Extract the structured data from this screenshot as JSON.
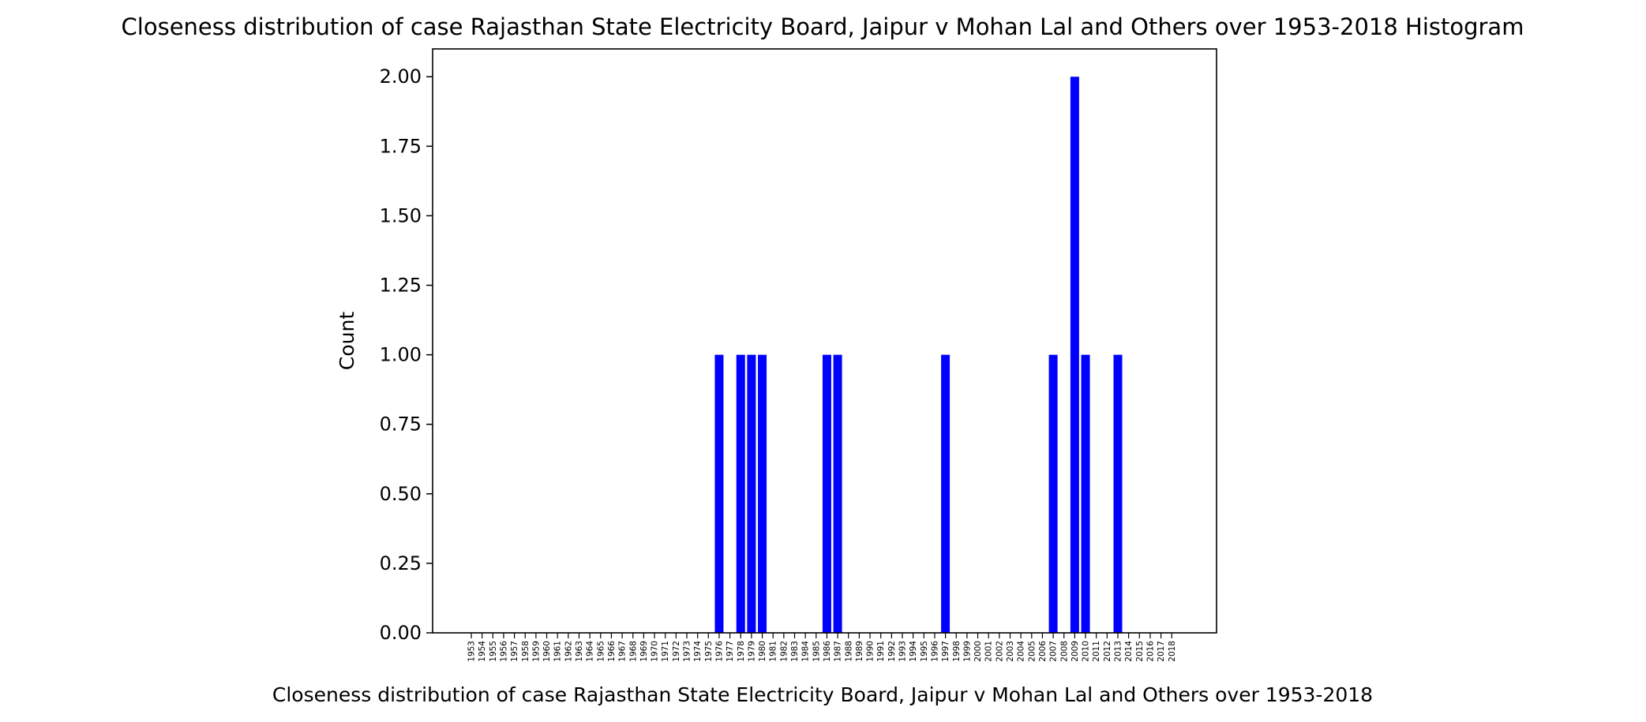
{
  "chart_data": {
    "type": "bar",
    "title": "Closeness distribution of case Rajasthan State Electricity Board, Jaipur v Mohan Lal and Others over 1953-2018 Histogram",
    "xlabel": "Closeness distribution of case Rajasthan State Electricity Board, Jaipur v Mohan Lal and Others over 1953-2018",
    "ylabel": "Count",
    "ylim": [
      0,
      2.1
    ],
    "yticks": [
      "0.00",
      "0.25",
      "0.50",
      "0.75",
      "1.00",
      "1.25",
      "1.50",
      "1.75",
      "2.00"
    ],
    "bar_color": "#0000ff",
    "grid": false,
    "categories": [
      "1953",
      "1954",
      "1955",
      "1956",
      "1957",
      "1958",
      "1959",
      "1960",
      "1961",
      "1962",
      "1963",
      "1964",
      "1965",
      "1966",
      "1967",
      "1968",
      "1969",
      "1970",
      "1971",
      "1972",
      "1973",
      "1974",
      "1975",
      "1976",
      "1977",
      "1978",
      "1979",
      "1980",
      "1981",
      "1982",
      "1983",
      "1984",
      "1985",
      "1986",
      "1987",
      "1988",
      "1989",
      "1990",
      "1991",
      "1992",
      "1993",
      "1994",
      "1995",
      "1996",
      "1997",
      "1998",
      "1999",
      "2000",
      "2001",
      "2002",
      "2003",
      "2004",
      "2005",
      "2006",
      "2007",
      "2008",
      "2009",
      "2010",
      "2011",
      "2012",
      "2013",
      "2014",
      "2015",
      "2016",
      "2017",
      "2018"
    ],
    "values": [
      0,
      0,
      0,
      0,
      0,
      0,
      0,
      0,
      0,
      0,
      0,
      0,
      0,
      0,
      0,
      0,
      0,
      0,
      0,
      0,
      0,
      0,
      0,
      1,
      0,
      1,
      1,
      1,
      0,
      0,
      0,
      0,
      0,
      1,
      1,
      0,
      0,
      0,
      0,
      0,
      0,
      0,
      0,
      0,
      1,
      0,
      0,
      0,
      0,
      0,
      0,
      0,
      0,
      0,
      1,
      0,
      2,
      1,
      0,
      0,
      1,
      0,
      0,
      0,
      0,
      0
    ]
  }
}
